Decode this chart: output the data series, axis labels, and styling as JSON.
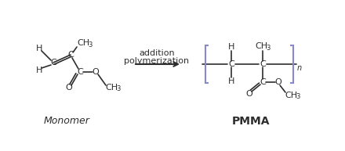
{
  "bg_color": "#ffffff",
  "line_color": "#2d2d2d",
  "bracket_color": "#8888cc",
  "arrow_color": "#2d2d2d",
  "font_size_atom": 8,
  "font_size_sub": 6,
  "font_size_label": 9,
  "monomer_label": "Monomer",
  "polymer_label": "PMMA",
  "arrow_text1": "addition",
  "arrow_text2": "polymerization"
}
